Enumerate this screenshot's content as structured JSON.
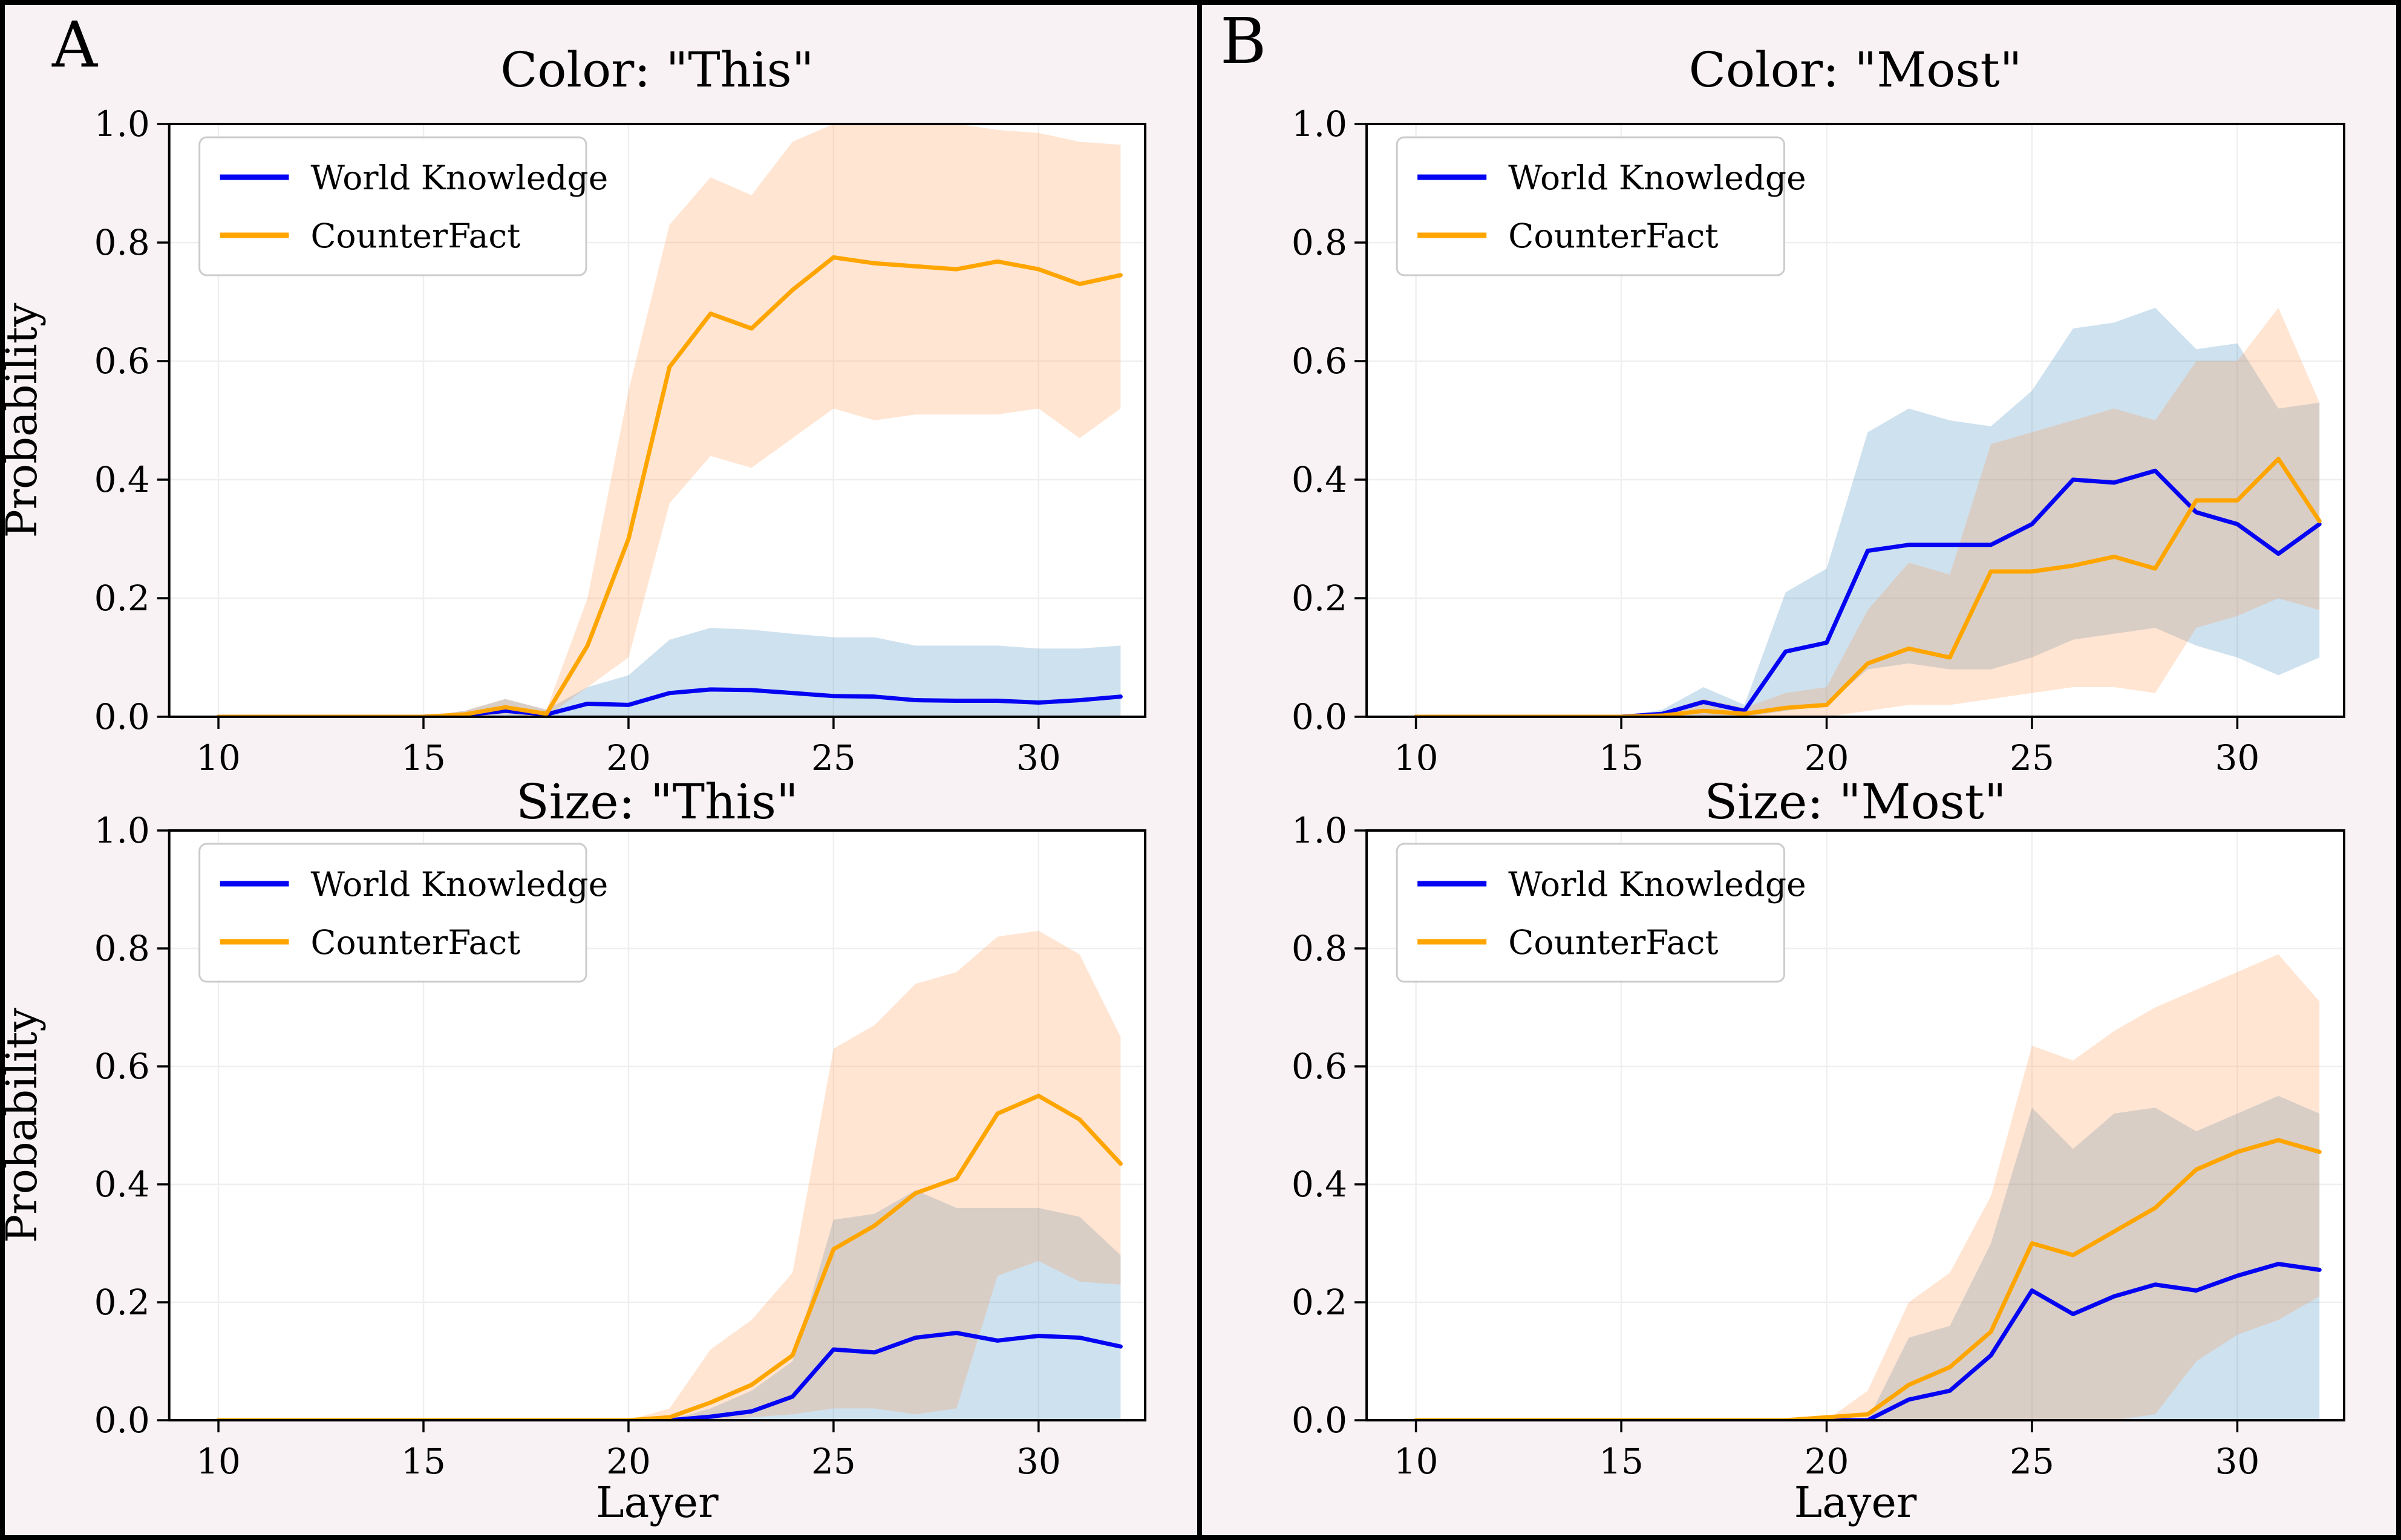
{
  "figure": {
    "type_note": "2x2 grid of probability-vs-layer line charts with confidence bands",
    "background": "#f8f2f4",
    "plot_background": "#ffffff",
    "border_color": "#000000",
    "grid_color": "#efefef",
    "legend_border": "#cccccc",
    "legend_labels": [
      "World Knowledge",
      "CounterFact"
    ],
    "colors": {
      "world_knowledge_line": "#0404f2",
      "counterfact_line": "#ffa500",
      "world_knowledge_band": "rgba(31,119,180,0.22)",
      "counterfact_band": "rgba(255,145,65,0.24)"
    }
  },
  "panels": [
    {
      "label": "A",
      "charts": [
        0,
        1
      ]
    },
    {
      "label": "B",
      "charts": [
        2,
        3
      ]
    }
  ],
  "chart_data": [
    {
      "id": "chart-color-this",
      "type": "line",
      "title": "Color: \"This\"",
      "xlabel": "",
      "ylabel": "Probability",
      "xlim": [
        8.8,
        32.6
      ],
      "ylim": [
        0,
        1
      ],
      "xticks": [
        10,
        15,
        20,
        25,
        30
      ],
      "yticks": [
        0.0,
        0.2,
        0.4,
        0.6,
        0.8,
        1.0
      ],
      "grid": true,
      "legend_position": "upper-left",
      "x": [
        10,
        11,
        12,
        13,
        14,
        15,
        16,
        17,
        18,
        19,
        20,
        21,
        22,
        23,
        24,
        25,
        26,
        27,
        28,
        29,
        30,
        31,
        32
      ],
      "series": [
        {
          "name": "World Knowledge",
          "color": "world_knowledge_line",
          "values": [
            0,
            0,
            0,
            0,
            0,
            0,
            0.003,
            0.01,
            0.004,
            0.022,
            0.02,
            0.04,
            0.046,
            0.045,
            0.04,
            0.035,
            0.034,
            0.028,
            0.027,
            0.027,
            0.024,
            0.028,
            0.034
          ]
        },
        {
          "name": "CounterFact",
          "color": "counterfact_line",
          "values": [
            0,
            0,
            0,
            0,
            0,
            0,
            0.004,
            0.016,
            0.005,
            0.12,
            0.3,
            0.59,
            0.68,
            0.655,
            0.72,
            0.775,
            0.765,
            0.76,
            0.755,
            0.768,
            0.755,
            0.73,
            0.745
          ]
        }
      ],
      "bands": [
        {
          "series": "World Knowledge",
          "color": "world_knowledge_band",
          "lower": [
            0,
            0,
            0,
            0,
            0,
            0,
            0,
            0,
            0,
            0,
            0,
            0,
            0,
            0,
            0,
            0,
            0,
            0,
            0,
            0,
            0,
            0,
            0
          ],
          "upper": [
            0,
            0,
            0,
            0,
            0,
            0,
            0.01,
            0.03,
            0.012,
            0.05,
            0.07,
            0.13,
            0.15,
            0.147,
            0.14,
            0.134,
            0.134,
            0.12,
            0.12,
            0.12,
            0.115,
            0.115,
            0.12
          ]
        },
        {
          "series": "CounterFact",
          "color": "counterfact_band",
          "lower": [
            0,
            0,
            0,
            0,
            0,
            0,
            0,
            0.004,
            0,
            0.05,
            0.1,
            0.36,
            0.44,
            0.42,
            0.47,
            0.52,
            0.5,
            0.51,
            0.51,
            0.51,
            0.52,
            0.47,
            0.52
          ],
          "upper": [
            0,
            0,
            0,
            0,
            0,
            0,
            0.01,
            0.03,
            0.012,
            0.2,
            0.55,
            0.83,
            0.91,
            0.88,
            0.97,
            1.0,
            1.0,
            1.0,
            1.0,
            0.99,
            0.985,
            0.97,
            0.965
          ]
        }
      ]
    },
    {
      "id": "chart-size-this",
      "type": "line",
      "title": "Size: \"This\"",
      "xlabel": "Layer",
      "ylabel": "Probability",
      "xlim": [
        8.8,
        32.6
      ],
      "ylim": [
        0,
        1
      ],
      "xticks": [
        10,
        15,
        20,
        25,
        30
      ],
      "yticks": [
        0.0,
        0.2,
        0.4,
        0.6,
        0.8,
        1.0
      ],
      "grid": true,
      "legend_position": "upper-left",
      "x": [
        10,
        11,
        12,
        13,
        14,
        15,
        16,
        17,
        18,
        19,
        20,
        21,
        22,
        23,
        24,
        25,
        26,
        27,
        28,
        29,
        30,
        31,
        32
      ],
      "series": [
        {
          "name": "World Knowledge",
          "color": "world_knowledge_line",
          "values": [
            0,
            0,
            0,
            0,
            0,
            0,
            0,
            0,
            0,
            0,
            0,
            0,
            0.006,
            0.015,
            0.04,
            0.12,
            0.115,
            0.14,
            0.148,
            0.135,
            0.143,
            0.14,
            0.125
          ]
        },
        {
          "name": "CounterFact",
          "color": "counterfact_line",
          "values": [
            0,
            0,
            0,
            0,
            0,
            0,
            0,
            0,
            0,
            0,
            0,
            0.005,
            0.03,
            0.06,
            0.11,
            0.29,
            0.33,
            0.385,
            0.41,
            0.52,
            0.55,
            0.51,
            0.435
          ]
        }
      ],
      "bands": [
        {
          "series": "World Knowledge",
          "color": "world_knowledge_band",
          "lower": [
            0,
            0,
            0,
            0,
            0,
            0,
            0,
            0,
            0,
            0,
            0,
            0,
            0,
            0,
            0,
            0,
            0,
            0,
            0,
            0,
            0,
            0,
            0
          ],
          "upper": [
            0,
            0,
            0,
            0,
            0,
            0,
            0,
            0,
            0,
            0,
            0,
            0,
            0.02,
            0.05,
            0.1,
            0.34,
            0.35,
            0.39,
            0.36,
            0.36,
            0.36,
            0.345,
            0.28
          ]
        },
        {
          "series": "CounterFact",
          "color": "counterfact_band",
          "lower": [
            0,
            0,
            0,
            0,
            0,
            0,
            0,
            0,
            0,
            0,
            0,
            0,
            0,
            0.005,
            0.01,
            0.02,
            0.02,
            0.01,
            0.02,
            0.245,
            0.27,
            0.235,
            0.23
          ],
          "upper": [
            0,
            0,
            0,
            0,
            0,
            0,
            0,
            0,
            0,
            0,
            0,
            0.02,
            0.12,
            0.17,
            0.25,
            0.63,
            0.67,
            0.74,
            0.76,
            0.82,
            0.83,
            0.79,
            0.65
          ]
        }
      ]
    },
    {
      "id": "chart-color-most",
      "type": "line",
      "title": "Color: \"Most\"",
      "xlabel": "",
      "ylabel": "",
      "xlim": [
        8.8,
        32.6
      ],
      "ylim": [
        0,
        1
      ],
      "xticks": [
        10,
        15,
        20,
        25,
        30
      ],
      "yticks": [
        0.0,
        0.2,
        0.4,
        0.6,
        0.8,
        1.0
      ],
      "grid": true,
      "legend_position": "upper-left",
      "x": [
        10,
        11,
        12,
        13,
        14,
        15,
        16,
        17,
        18,
        19,
        20,
        21,
        22,
        23,
        24,
        25,
        26,
        27,
        28,
        29,
        30,
        31,
        32
      ],
      "series": [
        {
          "name": "World Knowledge",
          "color": "world_knowledge_line",
          "values": [
            0,
            0,
            0,
            0,
            0,
            0,
            0.005,
            0.025,
            0.01,
            0.11,
            0.125,
            0.28,
            0.29,
            0.29,
            0.29,
            0.325,
            0.4,
            0.395,
            0.415,
            0.345,
            0.325,
            0.275,
            0.325
          ]
        },
        {
          "name": "CounterFact",
          "color": "counterfact_line",
          "values": [
            0,
            0,
            0,
            0,
            0,
            0,
            0.002,
            0.01,
            0.005,
            0.015,
            0.02,
            0.09,
            0.115,
            0.1,
            0.245,
            0.245,
            0.255,
            0.27,
            0.25,
            0.365,
            0.365,
            0.435,
            0.33
          ]
        }
      ],
      "bands": [
        {
          "series": "World Knowledge",
          "color": "world_knowledge_band",
          "lower": [
            0,
            0,
            0,
            0,
            0,
            0,
            0,
            0,
            0,
            0.01,
            0.02,
            0.08,
            0.09,
            0.08,
            0.08,
            0.1,
            0.13,
            0.14,
            0.15,
            0.12,
            0.1,
            0.07,
            0.1
          ],
          "upper": [
            0,
            0,
            0,
            0,
            0,
            0,
            0.012,
            0.05,
            0.02,
            0.21,
            0.25,
            0.48,
            0.52,
            0.5,
            0.49,
            0.55,
            0.655,
            0.665,
            0.69,
            0.62,
            0.63,
            0.52,
            0.53
          ]
        },
        {
          "series": "CounterFact",
          "color": "counterfact_band",
          "lower": [
            0,
            0,
            0,
            0,
            0,
            0,
            0,
            0,
            0,
            0,
            0,
            0.01,
            0.02,
            0.02,
            0.03,
            0.04,
            0.05,
            0.05,
            0.04,
            0.15,
            0.17,
            0.2,
            0.18
          ],
          "upper": [
            0,
            0,
            0,
            0,
            0,
            0,
            0.008,
            0.03,
            0.015,
            0.04,
            0.05,
            0.18,
            0.26,
            0.24,
            0.46,
            0.48,
            0.5,
            0.52,
            0.5,
            0.6,
            0.6,
            0.69,
            0.53
          ]
        }
      ]
    },
    {
      "id": "chart-size-most",
      "type": "line",
      "title": "Size: \"Most\"",
      "xlabel": "Layer",
      "ylabel": "",
      "xlim": [
        8.8,
        32.6
      ],
      "ylim": [
        0,
        1
      ],
      "xticks": [
        10,
        15,
        20,
        25,
        30
      ],
      "yticks": [
        0.0,
        0.2,
        0.4,
        0.6,
        0.8,
        1.0
      ],
      "grid": true,
      "legend_position": "upper-left",
      "x": [
        10,
        11,
        12,
        13,
        14,
        15,
        16,
        17,
        18,
        19,
        20,
        21,
        22,
        23,
        24,
        25,
        26,
        27,
        28,
        29,
        30,
        31,
        32
      ],
      "series": [
        {
          "name": "World Knowledge",
          "color": "world_knowledge_line",
          "values": [
            0,
            0,
            0,
            0,
            0,
            0,
            0,
            0,
            0,
            0,
            0,
            0,
            0.035,
            0.05,
            0.11,
            0.22,
            0.18,
            0.21,
            0.23,
            0.22,
            0.245,
            0.265,
            0.255
          ]
        },
        {
          "name": "CounterFact",
          "color": "counterfact_line",
          "values": [
            0,
            0,
            0,
            0,
            0,
            0,
            0,
            0,
            0,
            0,
            0.005,
            0.01,
            0.06,
            0.09,
            0.15,
            0.3,
            0.28,
            0.32,
            0.36,
            0.425,
            0.455,
            0.475,
            0.455
          ]
        }
      ],
      "bands": [
        {
          "series": "World Knowledge",
          "color": "world_knowledge_band",
          "lower": [
            0,
            0,
            0,
            0,
            0,
            0,
            0,
            0,
            0,
            0,
            0,
            0,
            0,
            0,
            0,
            0,
            0,
            0,
            0,
            0,
            0,
            0,
            0
          ],
          "upper": [
            0,
            0,
            0,
            0,
            0,
            0,
            0,
            0,
            0,
            0,
            0,
            0,
            0.14,
            0.16,
            0.3,
            0.53,
            0.46,
            0.52,
            0.53,
            0.49,
            0.52,
            0.55,
            0.52
          ]
        },
        {
          "series": "CounterFact",
          "color": "counterfact_band",
          "lower": [
            0,
            0,
            0,
            0,
            0,
            0,
            0,
            0,
            0,
            0,
            0,
            0,
            0,
            0,
            0,
            0,
            0,
            0,
            0.01,
            0.1,
            0.145,
            0.17,
            0.21
          ],
          "upper": [
            0,
            0,
            0,
            0,
            0,
            0,
            0,
            0,
            0,
            0,
            0,
            0.05,
            0.2,
            0.25,
            0.38,
            0.635,
            0.61,
            0.66,
            0.7,
            0.73,
            0.76,
            0.79,
            0.71
          ]
        }
      ]
    }
  ]
}
